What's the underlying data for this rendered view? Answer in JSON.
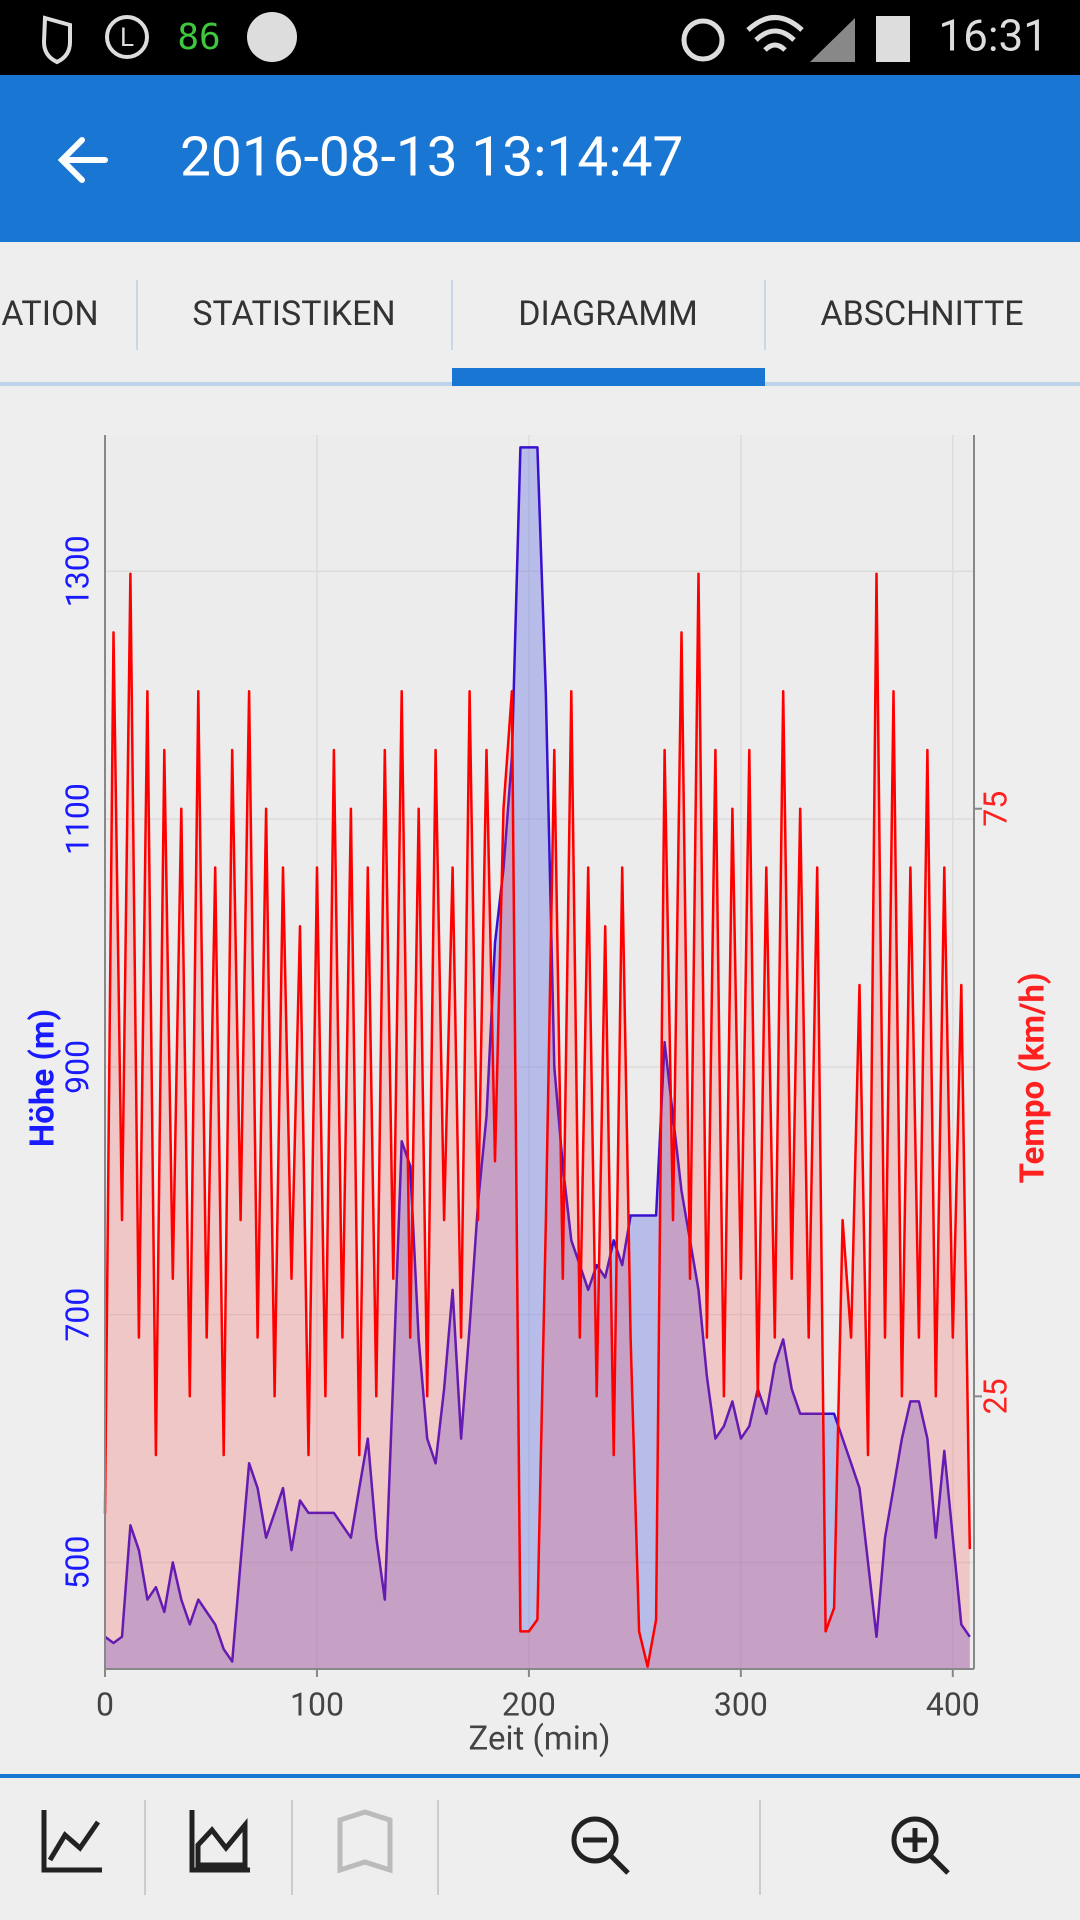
{
  "status_bar": {
    "left_icon_text": "L",
    "battery_level": "86",
    "time": "16:31"
  },
  "toolbar": {
    "title": "2016-08-13 13:14:47"
  },
  "tabs": [
    "ATION",
    "STATISTIKEN",
    "DIAGRAMM",
    "ABSCHNITTE"
  ],
  "selected_tab": 2,
  "chart_data": {
    "type": "line",
    "xlabel": "Zeit (min)",
    "ylabel": "Höhe (m)",
    "y2label": "Tempo (km/h)",
    "x": [
      0,
      4,
      8,
      12,
      16,
      20,
      24,
      28,
      32,
      36,
      40,
      44,
      48,
      52,
      56,
      60,
      64,
      68,
      72,
      76,
      80,
      84,
      88,
      92,
      96,
      100,
      104,
      108,
      112,
      116,
      120,
      124,
      128,
      132,
      136,
      140,
      144,
      148,
      152,
      156,
      160,
      164,
      168,
      172,
      176,
      180,
      184,
      188,
      192,
      196,
      200,
      204,
      208,
      212,
      216,
      220,
      224,
      228,
      232,
      236,
      240,
      244,
      248,
      252,
      256,
      260,
      264,
      268,
      272,
      276,
      280,
      284,
      288,
      292,
      296,
      300,
      304,
      308,
      312,
      316,
      320,
      324,
      328,
      332,
      336,
      340,
      344,
      348,
      352,
      356,
      360,
      364,
      368,
      372,
      376,
      380,
      384,
      388,
      392,
      396,
      400,
      404,
      408
    ],
    "series": [
      {
        "color": "#3a10d0",
        "fill": "rgba(90,100,230,0.35)",
        "values": [
          440,
          435,
          440,
          530,
          510,
          470,
          480,
          460,
          500,
          470,
          450,
          470,
          460,
          450,
          430,
          420,
          500,
          580,
          560,
          520,
          540,
          560,
          510,
          550,
          540,
          540,
          540,
          540,
          530,
          520,
          560,
          600,
          520,
          470,
          650,
          840,
          820,
          680,
          600,
          580,
          640,
          720,
          600,
          690,
          790,
          860,
          1000,
          1060,
          1150,
          1400,
          1400,
          1400,
          1200,
          900,
          820,
          760,
          740,
          720,
          740,
          730,
          760,
          740,
          780,
          780,
          780,
          780,
          920,
          860,
          800,
          760,
          720,
          650,
          600,
          610,
          630,
          600,
          610,
          640,
          620,
          660,
          680,
          640,
          620,
          620,
          620,
          620,
          620,
          600,
          580,
          560,
          500,
          440,
          520,
          560,
          600,
          630,
          630,
          600,
          520,
          590,
          520,
          450,
          440
        ]
      },
      {
        "color": "#ff0000",
        "fill": "rgba(255,70,70,0.22)",
        "axis": "y2",
        "values": [
          15,
          90,
          40,
          95,
          30,
          85,
          20,
          80,
          35,
          75,
          25,
          85,
          30,
          70,
          20,
          80,
          40,
          85,
          30,
          75,
          25,
          70,
          35,
          65,
          20,
          70,
          25,
          80,
          30,
          75,
          20,
          70,
          25,
          80,
          35,
          85,
          30,
          75,
          25,
          80,
          40,
          70,
          30,
          85,
          40,
          80,
          45,
          75,
          85,
          5,
          5,
          6,
          40,
          80,
          35,
          85,
          30,
          70,
          25,
          65,
          20,
          70,
          30,
          5,
          2,
          6,
          80,
          40,
          90,
          35,
          95,
          30,
          80,
          25,
          75,
          35,
          80,
          25,
          70,
          30,
          85,
          35,
          75,
          30,
          70,
          5,
          7,
          40,
          30,
          60,
          20,
          95,
          30,
          85,
          25,
          70,
          30,
          80,
          25,
          70,
          30,
          60,
          12
        ]
      }
    ],
    "xlim": [
      0,
      410
    ],
    "xticks": [
      0,
      100,
      200,
      300,
      400
    ],
    "ylim": [
      414,
      1410
    ],
    "yticks": [
      500,
      700,
      900,
      1100,
      1300
    ],
    "y2lim": [
      1.8,
      106.8
    ],
    "y2ticks": [
      25,
      75
    ],
    "grid": true
  }
}
